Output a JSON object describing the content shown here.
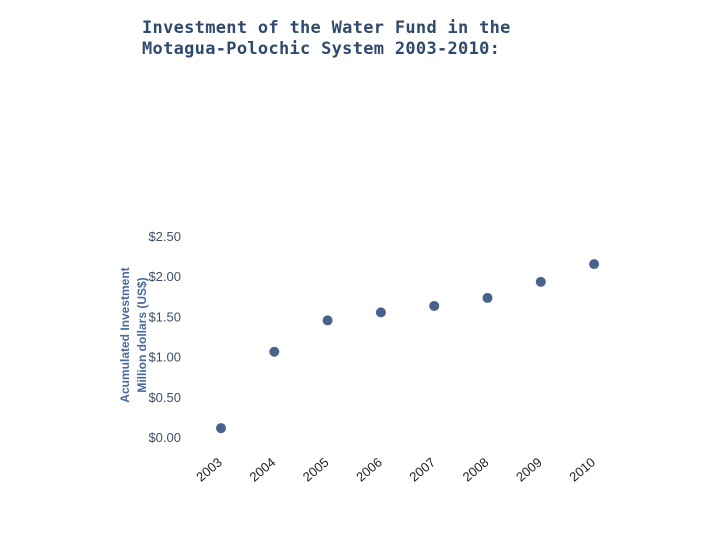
{
  "slide": {
    "title_line1": "Investment of the Water Fund in the",
    "title_line2": "Motagua-Polochic System 2003-2010:"
  },
  "chart_data": {
    "type": "scatter",
    "title": "Investment of the Water Fund in the Motagua-Polochic System 2003-2010:",
    "categories": [
      "2003",
      "2004",
      "2005",
      "2006",
      "2007",
      "2008",
      "2009",
      "2010"
    ],
    "values": [
      0.11,
      1.06,
      1.45,
      1.55,
      1.63,
      1.73,
      1.93,
      2.15
    ],
    "ylabel_line1": "Acumulated Investment",
    "ylabel_line2": "Million dollars (US$)",
    "xlabel": "",
    "ylim": [
      0,
      2.5
    ],
    "yticks": [
      0,
      0.5,
      1.0,
      1.5,
      2.0,
      2.5
    ],
    "ytick_labels": [
      "$0.00",
      "$0.50",
      "$1.00",
      "$1.50",
      "$2.00",
      "$2.50"
    ],
    "grid": false,
    "legend": "none",
    "colors": {
      "points": "#46628d",
      "ylabel": "#4a6a9c",
      "title": "#2f4a6c"
    }
  }
}
